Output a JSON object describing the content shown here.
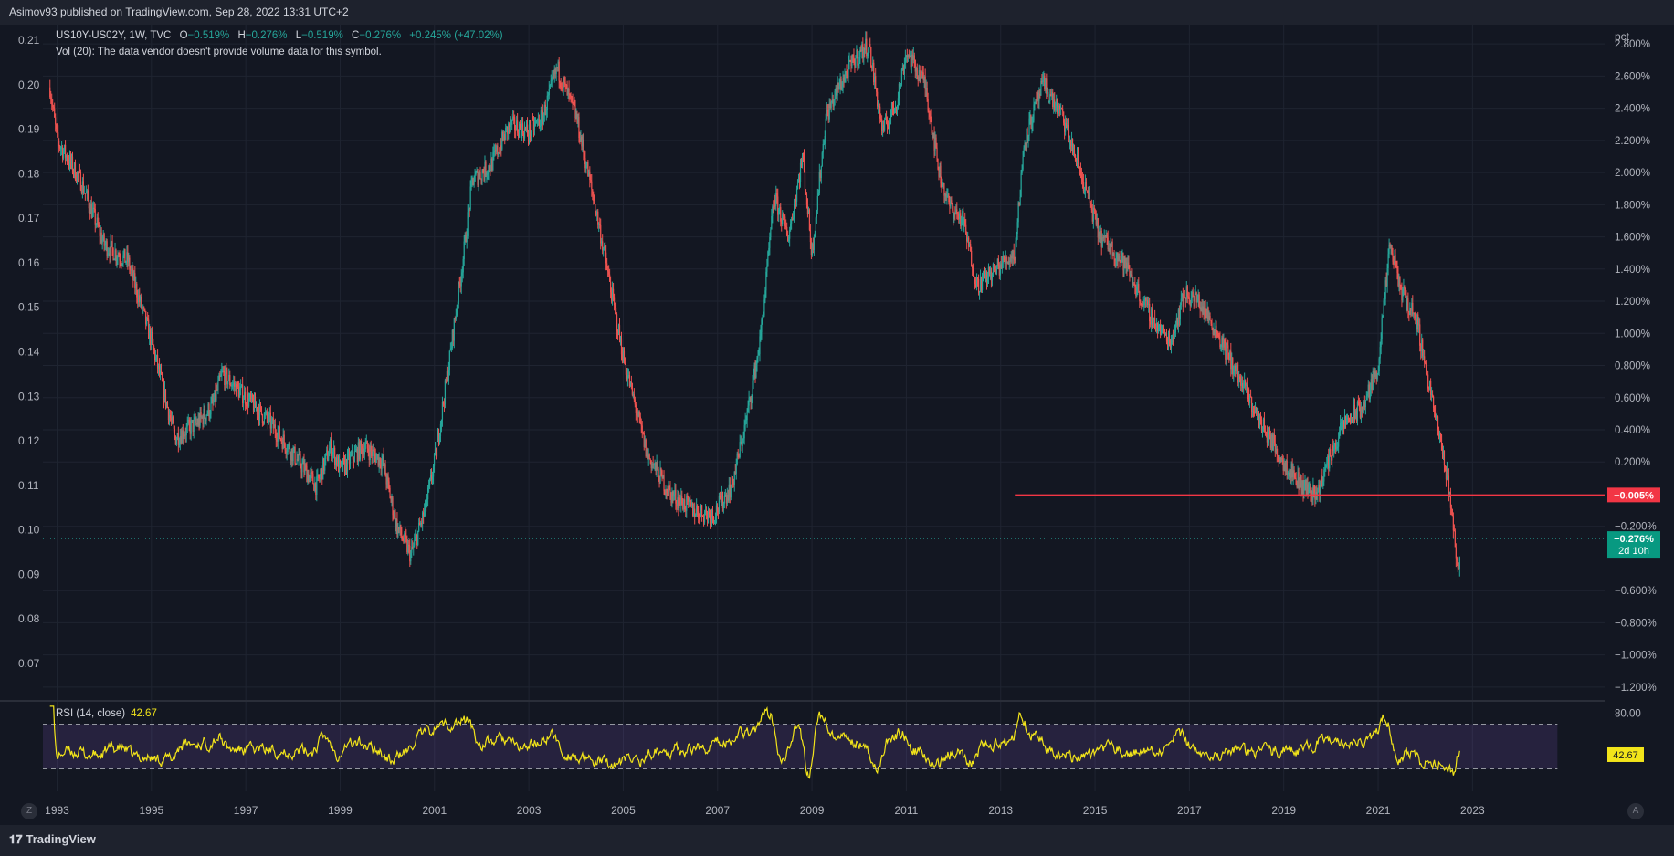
{
  "header": {
    "published": "Asimov93 published on TradingView.com, Sep 28, 2022 13:31 UTC+2"
  },
  "legend": {
    "symbol": "US10Y-US02Y, 1W, TVC",
    "open_label": "O",
    "open": "−0.519%",
    "high_label": "H",
    "high": "−0.276%",
    "low_label": "L",
    "low": "−0.519%",
    "close_label": "C",
    "close": "−0.276%",
    "change": "+0.245% (+47.02%)",
    "volume_note": "Vol (20): The data vendor doesn't provide volume data for this symbol."
  },
  "footer": {
    "logo": "TradingView",
    "scale_btn": "A",
    "zoom_btn": "Z"
  },
  "colors": {
    "bg": "#131722",
    "up": "#26a69a",
    "down": "#ef5350",
    "hline": "#f23645",
    "rsi": "#f2e41a"
  },
  "chart_data": [
    {
      "type": "candlestick",
      "title": "US10Y-US02Y, 1W, TVC",
      "left_axis_ticks": [
        "0.21",
        "0.20",
        "0.19",
        "0.18",
        "0.17",
        "0.16",
        "0.15",
        "0.14",
        "0.13",
        "0.12",
        "0.11",
        "0.10",
        "0.09",
        "0.08",
        "0.07"
      ],
      "right_axis_label": "pct",
      "right_axis_ticks": [
        "2.800%",
        "2.600%",
        "2.400%",
        "2.200%",
        "2.000%",
        "1.800%",
        "1.600%",
        "1.400%",
        "1.200%",
        "1.000%",
        "0.800%",
        "0.600%",
        "0.400%",
        "0.200%",
        "−0.200%",
        "−0.600%",
        "−0.800%",
        "−1.000%",
        "−1.200%"
      ],
      "x_ticks": [
        "1993",
        "1995",
        "1997",
        "1999",
        "2001",
        "2003",
        "2005",
        "2007",
        "2009",
        "2011",
        "2013",
        "2015",
        "2017",
        "2019",
        "2021",
        "2023"
      ],
      "ylim": [
        -1.28,
        2.92
      ],
      "xlim": [
        1992.7,
        2025.8
      ],
      "trend_points": [
        [
          1992.85,
          2.53
        ],
        [
          1993.0,
          2.2
        ],
        [
          1993.5,
          1.95
        ],
        [
          1994.0,
          1.55
        ],
        [
          1994.5,
          1.45
        ],
        [
          1995.0,
          0.95
        ],
        [
          1995.5,
          0.35
        ],
        [
          1996.0,
          0.45
        ],
        [
          1996.3,
          0.55
        ],
        [
          1996.5,
          0.75
        ],
        [
          1997.0,
          0.6
        ],
        [
          1997.5,
          0.45
        ],
        [
          1998.0,
          0.25
        ],
        [
          1998.5,
          0.05
        ],
        [
          1998.8,
          0.3
        ],
        [
          1999.0,
          0.15
        ],
        [
          1999.5,
          0.3
        ],
        [
          1999.9,
          0.2
        ],
        [
          2000.2,
          -0.2
        ],
        [
          2000.5,
          -0.38
        ],
        [
          2000.8,
          -0.1
        ],
        [
          2001.0,
          0.2
        ],
        [
          2001.3,
          0.8
        ],
        [
          2001.6,
          1.45
        ],
        [
          2001.8,
          1.95
        ],
        [
          2002.2,
          2.05
        ],
        [
          2002.6,
          2.3
        ],
        [
          2003.0,
          2.25
        ],
        [
          2003.3,
          2.35
        ],
        [
          2003.6,
          2.65
        ],
        [
          2004.0,
          2.35
        ],
        [
          2004.5,
          1.65
        ],
        [
          2005.0,
          0.85
        ],
        [
          2005.5,
          0.25
        ],
        [
          2006.0,
          0.0
        ],
        [
          2006.5,
          -0.1
        ],
        [
          2006.9,
          -0.13
        ],
        [
          2007.3,
          0.05
        ],
        [
          2007.6,
          0.45
        ],
        [
          2007.9,
          0.95
        ],
        [
          2008.2,
          1.85
        ],
        [
          2008.5,
          1.6
        ],
        [
          2008.8,
          2.1
        ],
        [
          2009.0,
          1.5
        ],
        [
          2009.3,
          2.35
        ],
        [
          2009.6,
          2.55
        ],
        [
          2009.9,
          2.7
        ],
        [
          2010.2,
          2.8
        ],
        [
          2010.5,
          2.25
        ],
        [
          2010.8,
          2.45
        ],
        [
          2011.0,
          2.75
        ],
        [
          2011.4,
          2.55
        ],
        [
          2011.7,
          2.0
        ],
        [
          2011.9,
          1.8
        ],
        [
          2012.2,
          1.7
        ],
        [
          2012.5,
          1.3
        ],
        [
          2012.9,
          1.4
        ],
        [
          2013.3,
          1.5
        ],
        [
          2013.5,
          2.2
        ],
        [
          2013.9,
          2.55
        ],
        [
          2014.3,
          2.35
        ],
        [
          2014.8,
          1.9
        ],
        [
          2015.1,
          1.6
        ],
        [
          2015.3,
          1.55
        ],
        [
          2015.7,
          1.4
        ],
        [
          2016.0,
          1.2
        ],
        [
          2016.3,
          1.05
        ],
        [
          2016.6,
          0.95
        ],
        [
          2016.9,
          1.25
        ],
        [
          2017.2,
          1.2
        ],
        [
          2017.6,
          1.0
        ],
        [
          2018.0,
          0.75
        ],
        [
          2018.5,
          0.45
        ],
        [
          2019.0,
          0.2
        ],
        [
          2019.4,
          0.05
        ],
        [
          2019.7,
          0.0
        ],
        [
          2020.0,
          0.25
        ],
        [
          2020.3,
          0.45
        ],
        [
          2020.7,
          0.55
        ],
        [
          2021.0,
          0.8
        ],
        [
          2021.25,
          1.55
        ],
        [
          2021.5,
          1.25
        ],
        [
          2021.8,
          1.1
        ],
        [
          2022.0,
          0.8
        ],
        [
          2022.3,
          0.35
        ],
        [
          2022.5,
          0.05
        ],
        [
          2022.7,
          -0.5
        ],
        [
          2022.74,
          -0.28
        ]
      ],
      "last_close": -0.276,
      "horizontal_line": {
        "value": -0.005,
        "label": "−0.005%",
        "from_x": 2013.3
      },
      "price_label": {
        "value": "−0.276%",
        "countdown": "2d 10h"
      }
    },
    {
      "type": "line",
      "title": "RSI (14, close)",
      "series": [
        {
          "name": "RSI (14, close)",
          "last": "42.67"
        }
      ],
      "band": [
        30,
        70
      ],
      "axis_tick": "80.00",
      "ylim": [
        10,
        90
      ]
    }
  ]
}
